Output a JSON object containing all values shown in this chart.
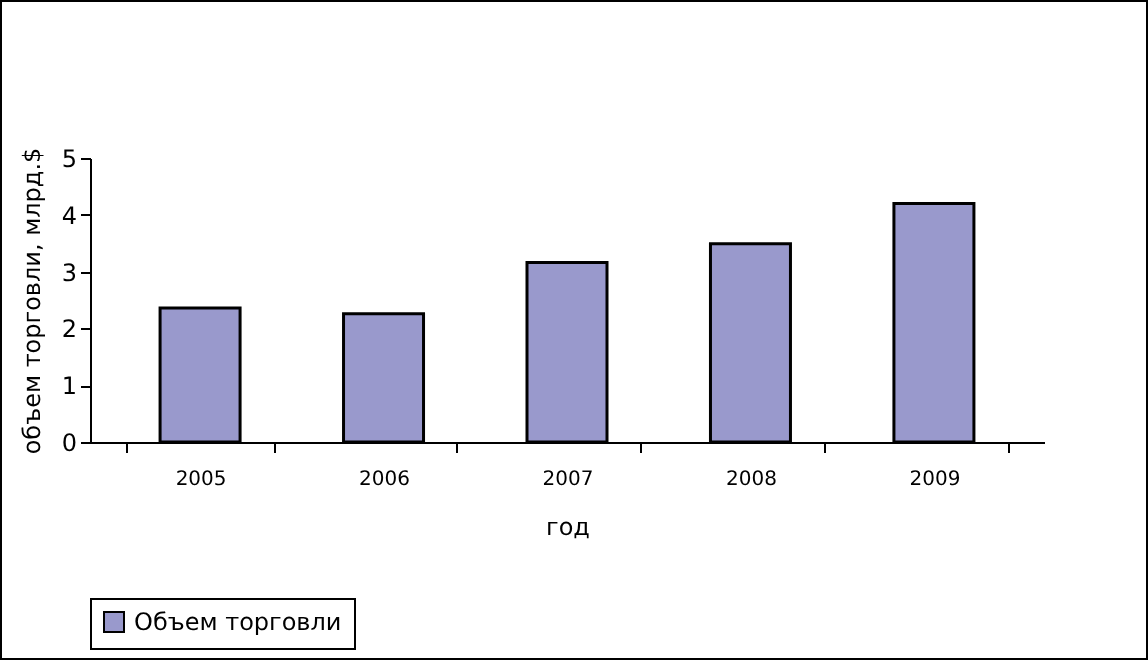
{
  "chart_data": {
    "type": "bar",
    "xlabel": "год",
    "ylabel": "объем торговли, млрд.$",
    "categories": [
      "2005",
      "2006",
      "2007",
      "2008",
      "2009"
    ],
    "series": [
      {
        "name": "Объем торговли",
        "color": "#9999cc",
        "values": [
          2.36,
          2.26,
          3.16,
          3.49,
          4.2
        ]
      }
    ],
    "ylim": [
      0,
      5
    ],
    "yticks": [
      0,
      1,
      2,
      3,
      4,
      5
    ],
    "legend": "bottom"
  }
}
